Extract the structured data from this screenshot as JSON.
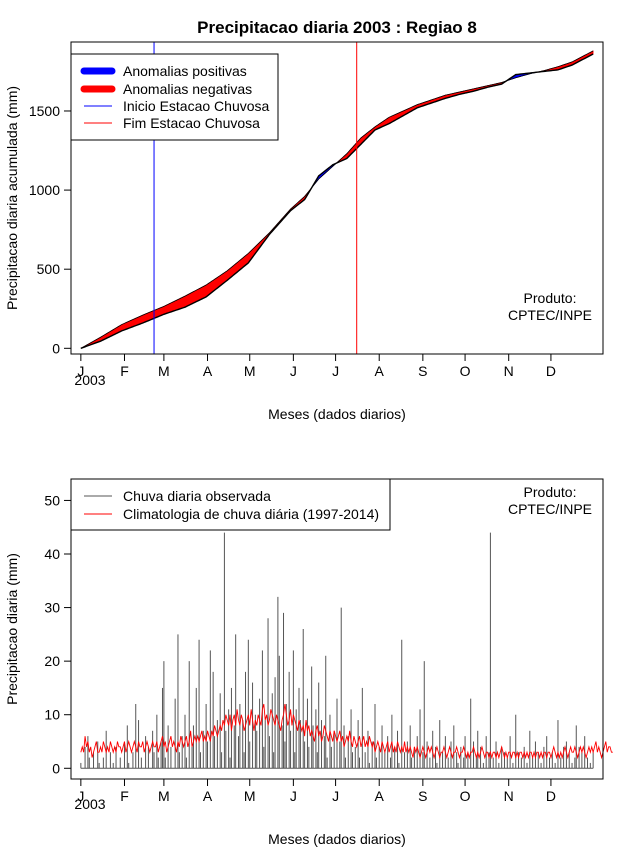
{
  "chart_data": [
    {
      "type": "area",
      "title": "Precipitacao diaria 2003 : Regiao 8",
      "xlabel": "Meses (dados diarios)",
      "ylabel": "Precipitacao diaria acumulada (mm)",
      "year_label": "2003",
      "month_ticks": [
        "J",
        "F",
        "M",
        "A",
        "M",
        "J",
        "J",
        "A",
        "S",
        "O",
        "N",
        "D"
      ],
      "month_days": [
        1,
        32,
        60,
        91,
        121,
        152,
        182,
        213,
        244,
        274,
        305,
        335
      ],
      "xlim": [
        -6,
        372
      ],
      "ylim": [
        -36,
        1936
      ],
      "y_ticks": [
        0,
        500,
        1000,
        1500
      ],
      "legend": [
        {
          "label": "Anomalias positivas",
          "color": "#0000ff",
          "style": "thick"
        },
        {
          "label": "Anomalias negativas",
          "color": "#ff0000",
          "style": "thick"
        },
        {
          "label": "Inicio Estacao Chuvosa",
          "color": "#0000ff",
          "style": "thin"
        },
        {
          "label": "Fim Estacao Chuvosa",
          "color": "#ff0000",
          "style": "thin"
        }
      ],
      "rain_season_start_day": 53,
      "rain_season_end_day": 197,
      "observed_cumulative": {
        "days": [
          1,
          15,
          30,
          45,
          60,
          75,
          90,
          105,
          120,
          135,
          150,
          160,
          170,
          180,
          190,
          200,
          210,
          220,
          230,
          240,
          250,
          260,
          270,
          280,
          290,
          300,
          310,
          320,
          330,
          340,
          350,
          365
        ],
        "values": [
          0,
          45,
          110,
          160,
          215,
          260,
          325,
          430,
          540,
          720,
          870,
          940,
          1090,
          1160,
          1200,
          1290,
          1380,
          1420,
          1470,
          1520,
          1550,
          1580,
          1605,
          1625,
          1650,
          1670,
          1730,
          1740,
          1750,
          1760,
          1790,
          1860
        ]
      },
      "climatology_cumulative": {
        "days": [
          1,
          15,
          30,
          45,
          60,
          75,
          90,
          105,
          120,
          135,
          150,
          160,
          170,
          180,
          190,
          200,
          210,
          220,
          230,
          240,
          250,
          260,
          270,
          280,
          290,
          300,
          310,
          320,
          330,
          340,
          350,
          365
        ],
        "values": [
          0,
          70,
          150,
          210,
          265,
          330,
          400,
          490,
          600,
          730,
          880,
          960,
          1070,
          1150,
          1230,
          1330,
          1400,
          1460,
          1500,
          1540,
          1570,
          1600,
          1620,
          1640,
          1660,
          1680,
          1710,
          1735,
          1755,
          1780,
          1810,
          1880
        ]
      },
      "annotation": [
        "Produto:",
        "CPTEC/INPE"
      ]
    },
    {
      "type": "bar",
      "xlabel": "Meses (dados diarios)",
      "ylabel": "Precipitacao diaria (mm)",
      "year_label": "2003",
      "month_ticks": [
        "J",
        "F",
        "M",
        "A",
        "M",
        "J",
        "J",
        "A",
        "S",
        "O",
        "N",
        "D"
      ],
      "month_days": [
        1,
        32,
        60,
        91,
        121,
        152,
        182,
        213,
        244,
        274,
        305,
        335
      ],
      "xlim": [
        -6,
        372
      ],
      "ylim": [
        -2,
        54
      ],
      "y_ticks": [
        0,
        10,
        20,
        30,
        40,
        50
      ],
      "legend": [
        {
          "label": "Chuva diaria observada",
          "color": "#555555",
          "style": "thin"
        },
        {
          "label": "Climatologia de chuva diária (1997-2014)",
          "color": "#ff0000",
          "style": "thin"
        }
      ],
      "observed_daily_mm": [
        1,
        0,
        0,
        4,
        0,
        6,
        2,
        0,
        0,
        3,
        0,
        0,
        5,
        1,
        0,
        0,
        2,
        0,
        7,
        0,
        0,
        3,
        0,
        1,
        0,
        4,
        0,
        0,
        2,
        0,
        0,
        5,
        0,
        8,
        1,
        0,
        0,
        3,
        0,
        12,
        0,
        9,
        0,
        2,
        0,
        0,
        6,
        0,
        4,
        0,
        0,
        7,
        3,
        0,
        10,
        2,
        0,
        5,
        15,
        20,
        2,
        0,
        8,
        0,
        4,
        0,
        0,
        13,
        0,
        25,
        3,
        0,
        6,
        0,
        10,
        2,
        0,
        20,
        0,
        4,
        8,
        0,
        15,
        0,
        24,
        3,
        0,
        7,
        0,
        12,
        5,
        0,
        22,
        0,
        18,
        6,
        0,
        9,
        0,
        14,
        3,
        0,
        44,
        7,
        0,
        11,
        2,
        15,
        0,
        8,
        25,
        0,
        6,
        12,
        0,
        9,
        3,
        18,
        0,
        24,
        5,
        0,
        16,
        0,
        10,
        7,
        0,
        13,
        0,
        22,
        4,
        9,
        0,
        28,
        6,
        0,
        14,
        3,
        17,
        0,
        32,
        21,
        0,
        8,
        29,
        5,
        12,
        0,
        18,
        7,
        0,
        22,
        3,
        11,
        0,
        15,
        9,
        0,
        26,
        5,
        0,
        13,
        4,
        0,
        19,
        8,
        0,
        11,
        3,
        16,
        0,
        9,
        0,
        6,
        21,
        2,
        0,
        10,
        4,
        0,
        7,
        0,
        13,
        0,
        5,
        30,
        0,
        8,
        2,
        0,
        6,
        0,
        11,
        3,
        0,
        4,
        0,
        9,
        2,
        0,
        15,
        0,
        3,
        0,
        7,
        1,
        0,
        5,
        0,
        12,
        2,
        0,
        4,
        0,
        8,
        0,
        3,
        0,
        6,
        0,
        2,
        10,
        0,
        4,
        0,
        7,
        1,
        0,
        24,
        0,
        3,
        0,
        5,
        0,
        8,
        2,
        0,
        4,
        0,
        6,
        0,
        11,
        0,
        3,
        20,
        0,
        5,
        0,
        2,
        0,
        7,
        0,
        4,
        1,
        0,
        9,
        0,
        3,
        0,
        6,
        0,
        2,
        0,
        5,
        0,
        8,
        0,
        3,
        1,
        0,
        4,
        0,
        2,
        6,
        0,
        3,
        0,
        13,
        0,
        5,
        0,
        2,
        7,
        0,
        4,
        0,
        1,
        0,
        6,
        0,
        3,
        44,
        0,
        2,
        0,
        5,
        0,
        1,
        0,
        4,
        0,
        3,
        0,
        2,
        0,
        6,
        0,
        1,
        0,
        10,
        0,
        3,
        0,
        2,
        0,
        4,
        0,
        1,
        0,
        7,
        0,
        2,
        0,
        5,
        0,
        3,
        0,
        1,
        0,
        4,
        0,
        6,
        0,
        2,
        0,
        3,
        0,
        1,
        0,
        9,
        0,
        2,
        0,
        4,
        0,
        5,
        0,
        3,
        0,
        1,
        0,
        2,
        8,
        0,
        4,
        0,
        3,
        0,
        6,
        0,
        2,
        0,
        1,
        0,
        3
      ],
      "climatology_daily_mm": [
        3,
        4,
        3,
        6,
        4,
        5,
        3,
        4,
        2,
        3,
        4,
        5,
        3,
        3,
        4,
        3,
        5,
        4,
        3,
        4,
        3,
        5,
        4,
        3,
        4,
        3,
        5,
        4,
        4,
        3,
        4,
        5,
        3,
        4,
        5,
        4,
        3,
        4,
        5,
        4,
        3,
        5,
        4,
        4,
        5,
        3,
        4,
        5,
        4,
        3,
        4,
        5,
        4,
        4,
        5,
        3,
        4,
        5,
        6,
        4,
        5,
        3,
        4,
        5,
        6,
        4,
        5,
        4,
        3,
        5,
        4,
        6,
        5,
        4,
        5,
        6,
        4,
        5,
        7,
        4,
        5,
        6,
        5,
        6,
        5,
        6,
        7,
        5,
        6,
        5,
        7,
        6,
        5,
        7,
        6,
        8,
        7,
        6,
        7,
        8,
        7,
        9,
        8,
        10,
        9,
        8,
        10,
        7,
        9,
        10,
        8,
        11,
        9,
        8,
        10,
        9,
        7,
        8,
        9,
        10,
        8,
        11,
        9,
        7,
        9,
        8,
        10,
        9,
        8,
        11,
        12,
        9,
        10,
        8,
        9,
        11,
        10,
        9,
        8,
        10,
        9,
        8,
        7,
        9,
        10,
        12,
        10,
        8,
        9,
        11,
        8,
        10,
        9,
        8,
        7,
        9,
        8,
        7,
        8,
        6,
        9,
        7,
        8,
        6,
        7,
        6,
        5,
        7,
        8,
        6,
        7,
        5,
        6,
        8,
        7,
        6,
        5,
        7,
        6,
        5,
        7,
        6,
        5,
        6,
        7,
        5,
        6,
        4,
        5,
        6,
        5,
        7,
        5,
        4,
        6,
        5,
        4,
        5,
        6,
        4,
        5,
        6,
        4,
        5,
        4,
        6,
        5,
        4,
        5,
        3,
        4,
        5,
        4,
        3,
        5,
        4,
        3,
        4,
        5,
        3,
        4,
        5,
        3,
        4,
        3,
        5,
        4,
        3,
        4,
        3,
        5,
        3,
        4,
        3,
        4,
        3,
        2,
        4,
        3,
        4,
        3,
        2,
        3,
        4,
        3,
        2,
        3,
        4,
        3,
        4,
        3,
        2,
        3,
        4,
        3,
        2,
        3,
        3,
        4,
        3,
        2,
        3,
        4,
        3,
        2,
        3,
        3,
        4,
        3,
        2,
        3,
        3,
        4,
        3,
        2,
        3,
        2,
        3,
        3,
        4,
        3,
        2,
        3,
        2,
        3,
        4,
        3,
        2,
        3,
        3,
        2,
        3,
        2,
        3,
        3,
        2,
        3,
        2,
        3,
        4,
        3,
        2,
        3,
        2,
        3,
        3,
        2,
        3,
        3,
        2,
        3,
        2,
        3,
        3,
        2,
        3,
        2,
        3,
        2,
        3,
        3,
        2,
        3,
        2,
        3,
        3,
        2,
        3,
        2,
        3,
        3,
        2,
        3,
        3,
        2,
        3,
        4,
        3,
        2,
        3,
        2,
        3,
        2,
        3,
        4,
        3,
        2,
        3,
        4,
        3,
        3,
        4,
        3,
        2,
        3,
        4,
        3,
        4,
        3,
        2,
        3,
        4,
        3,
        4,
        3,
        4,
        5,
        3,
        4,
        3,
        2,
        3,
        4,
        5,
        3,
        4,
        4,
        3,
        3
      ],
      "annotation": [
        "Produto:",
        "CPTEC/INPE"
      ]
    }
  ]
}
